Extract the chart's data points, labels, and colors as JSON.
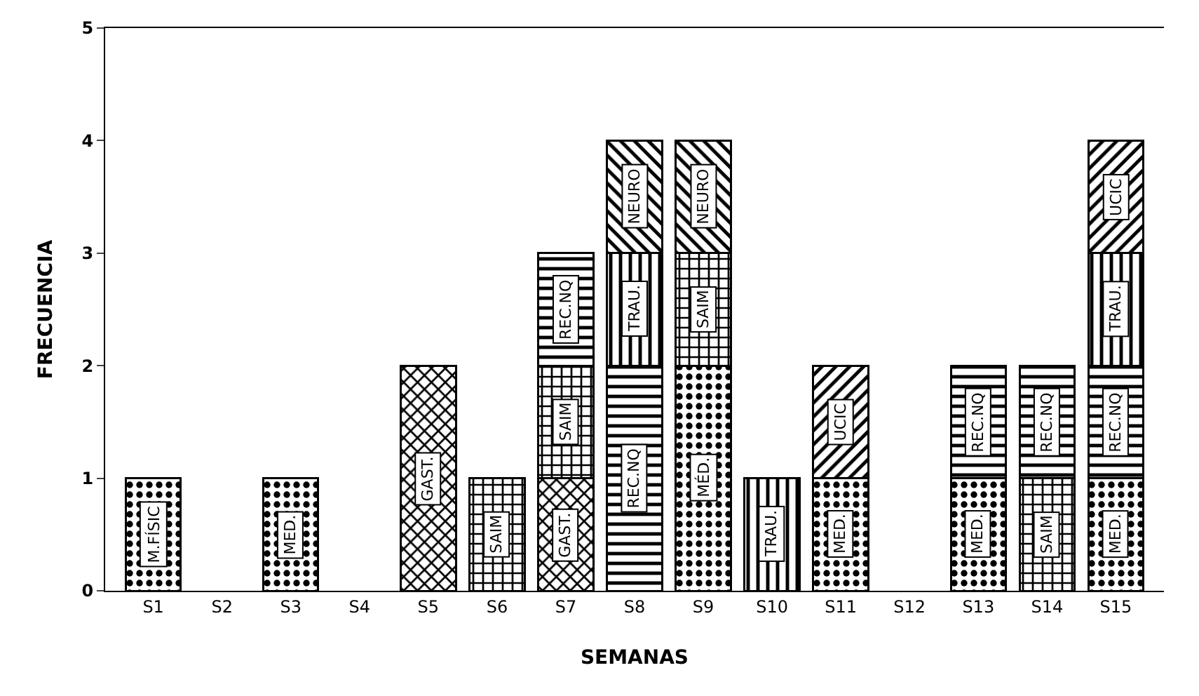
{
  "chart_data": {
    "type": "bar",
    "stacked": true,
    "xlabel": "SEMANAS",
    "ylabel": "FRECUENCIA",
    "categories": [
      "S1",
      "S2",
      "S3",
      "S4",
      "S5",
      "S6",
      "S7",
      "S8",
      "S9",
      "S10",
      "S11",
      "S12",
      "S13",
      "S14",
      "S15"
    ],
    "ylim": [
      0,
      5
    ],
    "yticks": [
      0,
      1,
      2,
      3,
      4,
      5
    ],
    "grid": false,
    "series": [
      {
        "color": "#000000",
        "values": [
          1,
          null,
          null,
          null,
          null,
          null,
          null,
          null,
          null,
          null,
          null,
          null,
          null,
          null,
          null
        ],
        "value_labels": [
          "M.FÍSIC",
          null,
          null,
          null,
          null,
          null,
          null,
          null,
          null,
          null,
          null,
          null,
          null,
          null,
          null
        ]
      },
      {
        "color": "#000000",
        "values": [
          null,
          null,
          1,
          null,
          null,
          null,
          null,
          null,
          2,
          null,
          1,
          null,
          1,
          null,
          1
        ],
        "value_labels": [
          null,
          null,
          "MED.",
          null,
          null,
          null,
          null,
          null,
          "MÉD.",
          null,
          "MED.",
          null,
          "MED.",
          null,
          "MED."
        ]
      },
      {
        "color": "#000000",
        "values": [
          null,
          null,
          null,
          null,
          2,
          null,
          1,
          null,
          null,
          null,
          null,
          null,
          null,
          null,
          null
        ],
        "value_labels": [
          null,
          null,
          null,
          null,
          "GAST.",
          null,
          "GAST.",
          null,
          null,
          null,
          null,
          null,
          null,
          null,
          null
        ]
      },
      {
        "color": "#000000",
        "values": [
          null,
          null,
          null,
          null,
          null,
          1,
          1,
          null,
          1,
          null,
          null,
          null,
          null,
          1,
          null
        ],
        "value_labels": [
          null,
          null,
          null,
          null,
          null,
          "SAIM",
          "SAIM",
          null,
          "SAIM",
          null,
          null,
          null,
          null,
          "SAIM",
          null
        ]
      },
      {
        "color": "#000000",
        "values": [
          null,
          null,
          null,
          null,
          null,
          null,
          1,
          2,
          null,
          null,
          null,
          null,
          1,
          1,
          1
        ],
        "value_labels": [
          null,
          null,
          null,
          null,
          null,
          null,
          "REC.NQ",
          "REC.NQ",
          null,
          null,
          null,
          null,
          "REC.NQ",
          "REC.NQ",
          "REC.NQ"
        ]
      },
      {
        "color": "#000000",
        "values": [
          null,
          null,
          null,
          null,
          null,
          null,
          null,
          1,
          null,
          1,
          null,
          null,
          null,
          null,
          1
        ],
        "value_labels": [
          null,
          null,
          null,
          null,
          null,
          null,
          null,
          "TRAU.",
          null,
          "TRAU.",
          null,
          null,
          null,
          null,
          "TRAU."
        ]
      },
      {
        "color": "#000000",
        "values": [
          null,
          null,
          null,
          null,
          null,
          null,
          null,
          1,
          1,
          null,
          null,
          null,
          null,
          null,
          null
        ],
        "value_labels": [
          null,
          null,
          null,
          null,
          null,
          null,
          null,
          "NEURO",
          "NEURO",
          null,
          null,
          null,
          null,
          null,
          null
        ]
      },
      {
        "color": "#000000",
        "values": [
          null,
          null,
          null,
          null,
          null,
          null,
          null,
          null,
          null,
          null,
          1,
          null,
          null,
          null,
          1
        ],
        "value_labels": [
          null,
          null,
          null,
          null,
          null,
          null,
          null,
          null,
          null,
          null,
          "UCIC",
          null,
          null,
          null,
          "UCIC"
        ]
      }
    ]
  }
}
